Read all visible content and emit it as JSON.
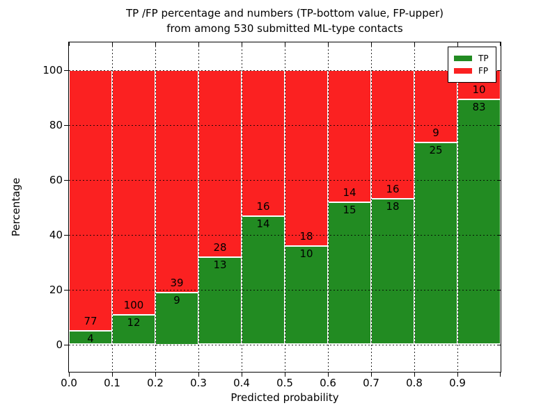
{
  "title": {
    "line1": "TP /FP percentage and numbers (TP-bottom value, FP-upper)",
    "line2": "from among 530 submitted ML-type contacts"
  },
  "legend": {
    "items": [
      {
        "label": "TP",
        "color": "#228b22"
      },
      {
        "label": "FP",
        "color": "#fb2121"
      }
    ],
    "position": "upper right"
  },
  "chart_data": {
    "type": "bar",
    "stacked": true,
    "bar_height_mode": "percent_of_bin_total",
    "title": "TP /FP percentage and numbers (TP-bottom value, FP-upper) from among 530 submitted ML-type contacts",
    "xlabel": "Predicted probability",
    "ylabel": "Percentage",
    "total_contacts": 530,
    "bin_edges": [
      0.0,
      0.1,
      0.2,
      0.3,
      0.4,
      0.5,
      0.6,
      0.7,
      0.8,
      0.9,
      1.0
    ],
    "series": [
      {
        "name": "TP",
        "color": "#228b22",
        "counts": [
          4,
          12,
          9,
          13,
          14,
          10,
          15,
          18,
          25,
          83
        ]
      },
      {
        "name": "FP",
        "color": "#fb2121",
        "counts": [
          77,
          100,
          39,
          28,
          16,
          18,
          14,
          16,
          9,
          10
        ]
      }
    ],
    "ylim": [
      -10,
      110
    ],
    "xlim": [
      0.0,
      1.0
    ],
    "yticks": {
      "values": [
        0,
        20,
        40,
        60,
        80,
        100
      ],
      "labels": [
        "0",
        "20",
        "40",
        "60",
        "80",
        "100"
      ]
    },
    "xticks": {
      "values": [
        0.0,
        0.1,
        0.2,
        0.3,
        0.4,
        0.5,
        0.6,
        0.7,
        0.8,
        0.9
      ],
      "labels": [
        "0.0",
        "0.1",
        "0.2",
        "0.3",
        "0.4",
        "0.5",
        "0.6",
        "0.7",
        "0.8",
        "0.9"
      ]
    },
    "grid": "dotted",
    "bar_edge_color": "#ffffff",
    "background": "#ffffff"
  }
}
